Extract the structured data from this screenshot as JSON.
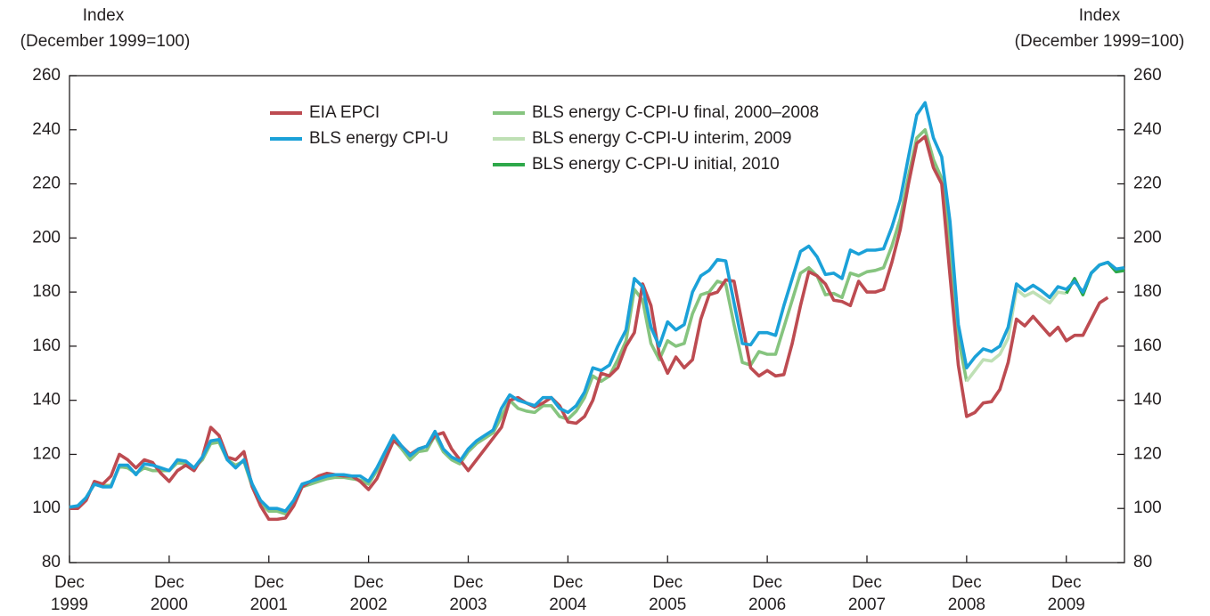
{
  "chart_data": {
    "type": "line",
    "ylabel": [
      "Index",
      "(December 1999=100)"
    ],
    "y2label": [
      "Index",
      "(December 1999=100)"
    ],
    "ylim": [
      80,
      260
    ],
    "yticks": [
      80,
      100,
      120,
      140,
      160,
      180,
      200,
      220,
      240,
      260
    ],
    "y2lim": [
      80,
      260
    ],
    "y2ticks": [
      80,
      100,
      120,
      140,
      160,
      180,
      200,
      220,
      240,
      260
    ],
    "xlim": [
      "1999-12",
      "2010-07"
    ],
    "xticks": [
      {
        "value": "1999-12",
        "label": "Dec 1999"
      },
      {
        "value": "2000-12",
        "label": "Dec 2000"
      },
      {
        "value": "2001-12",
        "label": "Dec 2001"
      },
      {
        "value": "2002-12",
        "label": "Dec 2002"
      },
      {
        "value": "2003-12",
        "label": "Dec 2003"
      },
      {
        "value": "2004-12",
        "label": "Dec 2004"
      },
      {
        "value": "2005-12",
        "label": "Dec 2005"
      },
      {
        "value": "2006-12",
        "label": "Dec 2006"
      },
      {
        "value": "2007-12",
        "label": "Dec 2007"
      },
      {
        "value": "2008-12",
        "label": "Dec 2008"
      },
      {
        "value": "2009-12",
        "label": "Dec 2009"
      }
    ],
    "x": [
      "1999-12",
      "2000-01",
      "2000-02",
      "2000-03",
      "2000-04",
      "2000-05",
      "2000-06",
      "2000-07",
      "2000-08",
      "2000-09",
      "2000-10",
      "2000-11",
      "2000-12",
      "2001-01",
      "2001-02",
      "2001-03",
      "2001-04",
      "2001-05",
      "2001-06",
      "2001-07",
      "2001-08",
      "2001-09",
      "2001-10",
      "2001-11",
      "2001-12",
      "2002-01",
      "2002-02",
      "2002-03",
      "2002-04",
      "2002-05",
      "2002-06",
      "2002-07",
      "2002-08",
      "2002-09",
      "2002-10",
      "2002-11",
      "2002-12",
      "2003-01",
      "2003-02",
      "2003-03",
      "2003-04",
      "2003-05",
      "2003-06",
      "2003-07",
      "2003-08",
      "2003-09",
      "2003-10",
      "2003-11",
      "2003-12",
      "2004-01",
      "2004-02",
      "2004-03",
      "2004-04",
      "2004-05",
      "2004-06",
      "2004-07",
      "2004-08",
      "2004-09",
      "2004-10",
      "2004-11",
      "2004-12",
      "2005-01",
      "2005-02",
      "2005-03",
      "2005-04",
      "2005-05",
      "2005-06",
      "2005-07",
      "2005-08",
      "2005-09",
      "2005-10",
      "2005-11",
      "2005-12",
      "2006-01",
      "2006-02",
      "2006-03",
      "2006-04",
      "2006-05",
      "2006-06",
      "2006-07",
      "2006-08",
      "2006-09",
      "2006-10",
      "2006-11",
      "2006-12",
      "2007-01",
      "2007-02",
      "2007-03",
      "2007-04",
      "2007-05",
      "2007-06",
      "2007-07",
      "2007-08",
      "2007-09",
      "2007-10",
      "2007-11",
      "2007-12",
      "2008-01",
      "2008-02",
      "2008-03",
      "2008-04",
      "2008-05",
      "2008-06",
      "2008-07",
      "2008-08",
      "2008-09",
      "2008-10",
      "2008-11",
      "2008-12",
      "2009-01",
      "2009-02",
      "2009-03",
      "2009-04",
      "2009-05",
      "2009-06",
      "2009-07",
      "2009-08",
      "2009-09",
      "2009-10",
      "2009-11",
      "2009-12",
      "2010-01",
      "2010-02",
      "2010-03",
      "2010-04",
      "2010-05",
      "2010-06",
      "2010-07"
    ],
    "series": [
      {
        "name": "EIA EPCI",
        "color": "#bd4b51",
        "values": [
          100,
          100,
          103,
          110,
          109,
          112,
          120,
          118,
          115,
          118,
          117,
          113,
          110,
          114,
          116,
          114,
          119,
          130,
          127,
          119,
          118,
          121,
          108,
          101,
          96,
          96,
          96.5,
          101,
          108,
          110,
          112,
          113,
          112.5,
          112,
          112,
          110,
          107,
          111,
          118,
          125,
          123,
          120,
          122,
          123,
          127,
          128,
          122,
          118,
          114,
          118,
          122,
          126,
          130,
          140,
          141,
          139,
          137.5,
          139,
          141,
          138,
          132,
          131.5,
          134,
          140,
          150,
          149,
          152,
          160,
          165,
          183,
          175,
          157,
          150,
          156,
          152,
          155,
          170,
          179,
          180,
          184.5,
          184,
          168,
          152,
          149,
          151,
          149,
          149.5,
          161,
          175,
          187.5,
          186,
          183,
          177,
          176.5,
          175,
          184,
          180,
          180,
          181,
          191,
          203,
          220,
          235,
          237.5,
          226,
          220,
          186,
          153,
          134,
          135.5,
          139,
          139.5,
          144,
          154,
          170,
          167.5,
          171,
          167.5,
          164,
          167,
          162,
          164,
          164,
          170,
          176,
          178,
          null,
          null
        ]
      },
      {
        "name": "BLS energy CPI-U",
        "color": "#1ba1d8",
        "values": [
          100.5,
          101,
          104,
          109,
          108,
          108,
          116,
          116,
          112.5,
          116.5,
          116,
          115,
          114,
          118,
          117.5,
          115,
          119,
          125,
          125.5,
          118,
          115,
          118,
          109,
          103,
          100,
          100,
          99,
          103,
          109,
          110,
          111,
          112,
          112.5,
          112.5,
          112,
          112,
          110,
          115,
          121,
          127,
          123,
          119.5,
          122,
          123,
          128.5,
          122,
          119,
          117.5,
          122,
          125,
          127,
          129,
          137,
          142,
          140,
          139,
          138,
          141,
          141,
          137,
          135.5,
          138,
          143,
          152,
          151,
          153,
          160,
          166,
          185,
          182,
          167,
          160,
          169,
          166,
          168,
          180,
          186,
          188,
          192,
          191.5,
          176,
          161,
          160.5,
          165,
          165,
          164,
          175,
          185,
          195,
          197,
          193,
          186.5,
          187,
          185,
          195.5,
          194,
          195.5,
          195.5,
          196,
          204,
          214,
          230,
          245.5,
          250,
          237,
          230,
          206,
          168,
          152,
          156,
          159,
          158,
          160,
          167,
          183,
          180.5,
          182.5,
          180.5,
          178,
          182,
          181,
          184,
          180,
          187,
          190,
          191,
          188.5,
          189
        ]
      },
      {
        "name": "BLS energy C-CPI-U final, 2000–2008",
        "color": "#86c47f",
        "values": [
          100,
          100.5,
          104,
          109,
          108.5,
          108.5,
          115.5,
          115,
          113,
          115,
          114,
          114,
          114,
          117,
          116.5,
          115,
          118,
          124,
          124.5,
          118,
          116,
          117.5,
          108,
          102,
          99,
          99,
          98,
          102,
          108,
          109,
          110,
          111,
          111.5,
          111.5,
          111,
          110.5,
          109,
          114,
          120,
          125.5,
          122,
          118,
          121,
          121.5,
          127,
          121,
          118,
          116.5,
          121,
          124,
          126,
          128,
          134,
          140,
          137,
          136,
          135.5,
          138,
          138,
          134,
          133,
          136,
          141,
          149,
          147,
          149,
          155,
          162,
          181,
          177,
          161,
          155,
          162,
          160,
          161,
          172,
          179,
          180,
          184,
          183,
          168,
          154,
          153,
          158,
          157,
          157,
          167,
          177,
          187,
          189,
          186,
          179,
          179.5,
          178,
          187,
          186,
          187.5,
          188,
          189,
          197,
          207,
          223,
          237,
          240,
          229,
          222,
          198,
          163,
          147,
          null,
          null,
          null,
          null,
          null,
          null,
          null,
          null,
          null,
          null,
          null,
          null,
          null,
          null,
          null,
          null,
          null,
          null,
          null
        ]
      },
      {
        "name": "BLS energy C-CPI-U interim, 2009",
        "color": "#bfe0b5",
        "values": [
          null,
          null,
          null,
          null,
          null,
          null,
          null,
          null,
          null,
          null,
          null,
          null,
          null,
          null,
          null,
          null,
          null,
          null,
          null,
          null,
          null,
          null,
          null,
          null,
          null,
          null,
          null,
          null,
          null,
          null,
          null,
          null,
          null,
          null,
          null,
          null,
          null,
          null,
          null,
          null,
          null,
          null,
          null,
          null,
          null,
          null,
          null,
          null,
          null,
          null,
          null,
          null,
          null,
          null,
          null,
          null,
          null,
          null,
          null,
          null,
          null,
          null,
          null,
          null,
          null,
          null,
          null,
          null,
          null,
          null,
          null,
          null,
          null,
          null,
          null,
          null,
          null,
          null,
          null,
          null,
          null,
          null,
          null,
          null,
          null,
          null,
          null,
          null,
          null,
          null,
          null,
          null,
          null,
          null,
          null,
          null,
          null,
          null,
          null,
          null,
          null,
          null,
          null,
          null,
          null,
          null,
          null,
          null,
          147,
          151,
          155,
          154.5,
          157,
          163,
          181,
          178.5,
          180,
          178,
          176,
          180,
          179.5,
          null,
          null,
          null,
          null,
          null,
          null,
          null
        ]
      },
      {
        "name": "BLS energy C-CPI-U initial, 2010",
        "color": "#2ea84a",
        "values": [
          null,
          null,
          null,
          null,
          null,
          null,
          null,
          null,
          null,
          null,
          null,
          null,
          null,
          null,
          null,
          null,
          null,
          null,
          null,
          null,
          null,
          null,
          null,
          null,
          null,
          null,
          null,
          null,
          null,
          null,
          null,
          null,
          null,
          null,
          null,
          null,
          null,
          null,
          null,
          null,
          null,
          null,
          null,
          null,
          null,
          null,
          null,
          null,
          null,
          null,
          null,
          null,
          null,
          null,
          null,
          null,
          null,
          null,
          null,
          null,
          null,
          null,
          null,
          null,
          null,
          null,
          null,
          null,
          null,
          null,
          null,
          null,
          null,
          null,
          null,
          null,
          null,
          null,
          null,
          null,
          null,
          null,
          null,
          null,
          null,
          null,
          null,
          null,
          null,
          null,
          null,
          null,
          null,
          null,
          null,
          null,
          null,
          null,
          null,
          null,
          null,
          null,
          null,
          null,
          null,
          null,
          null,
          null,
          null,
          null,
          null,
          null,
          null,
          null,
          null,
          null,
          null,
          null,
          null,
          null,
          179.5,
          185,
          179,
          187,
          190,
          191,
          187.5,
          188
        ]
      }
    ]
  }
}
